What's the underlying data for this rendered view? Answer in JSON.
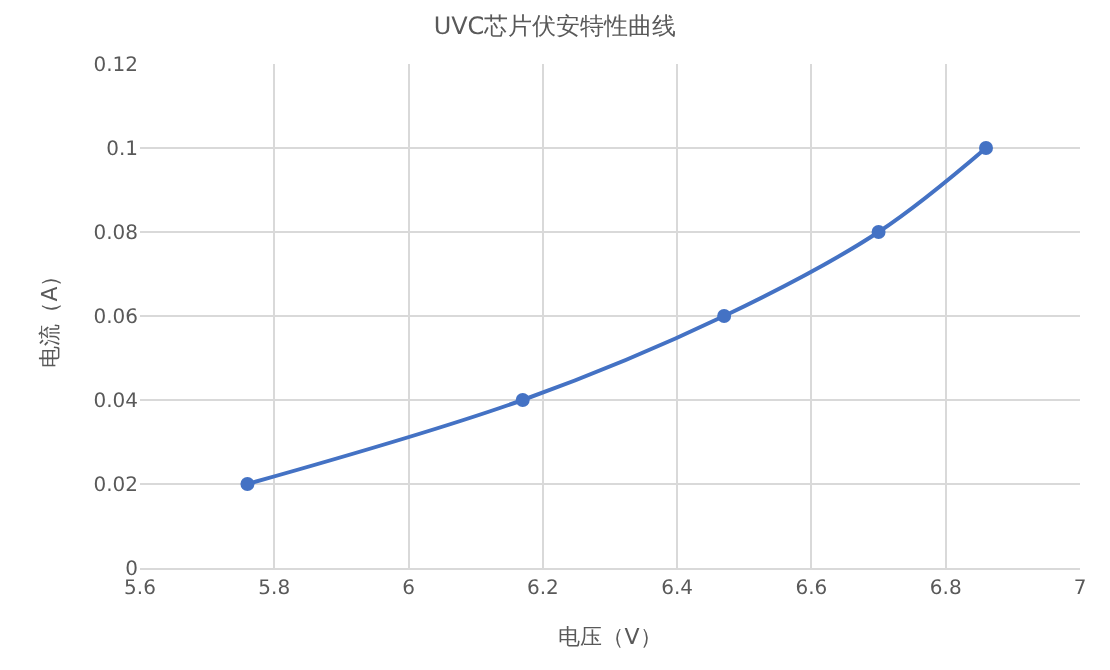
{
  "chart_data": {
    "type": "line",
    "title": "UVC芯片伏安特性曲线",
    "xlabel": "电压（V）",
    "ylabel": "电流（A）",
    "x": [
      5.76,
      6.17,
      6.47,
      6.7,
      6.86
    ],
    "series": [
      {
        "color": "#4472c4",
        "values": [
          0.02,
          0.04,
          0.06,
          0.08,
          0.1
        ]
      }
    ],
    "xlim": [
      5.6,
      7
    ],
    "xticks": [
      5.6,
      5.8,
      6,
      6.2,
      6.4,
      6.6,
      6.8,
      7
    ],
    "ylim": [
      0,
      0.12
    ],
    "yticks": [
      0,
      0.02,
      0.04,
      0.06,
      0.08,
      0.1,
      0.12
    ],
    "grid": true,
    "marker": "circle",
    "line_style": "solid"
  }
}
